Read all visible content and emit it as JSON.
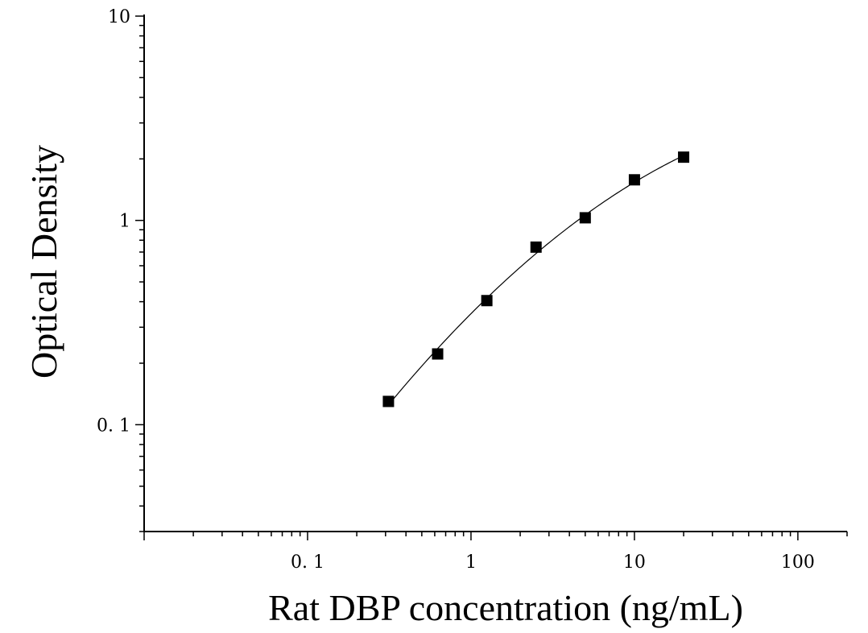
{
  "chart_data": {
    "type": "scatter",
    "xlabel": "Rat DBP concentration (ng/mL)",
    "ylabel": "Optical Density",
    "xscale": "log",
    "yscale": "log",
    "xlim": [
      0.01,
      200
    ],
    "ylim": [
      0.03,
      10
    ],
    "x_ticks": [
      0.1,
      1,
      10,
      100
    ],
    "x_tick_labels": [
      "0. 1",
      "1",
      "10",
      "100"
    ],
    "y_ticks": [
      0.1,
      1,
      10
    ],
    "y_tick_labels": [
      "0. 1",
      "1",
      "10"
    ],
    "grid": false,
    "legend": "none",
    "series": [
      {
        "marker": "square",
        "line": "fitted curve",
        "x": [
          0.3125,
          0.625,
          1.25,
          2.5,
          5,
          10,
          20
        ],
        "y": [
          0.13,
          0.222,
          0.405,
          0.74,
          1.03,
          1.58,
          2.04
        ]
      }
    ],
    "colors": {
      "marker": "#000000",
      "curve": "#000000",
      "axis": "#000000"
    }
  }
}
